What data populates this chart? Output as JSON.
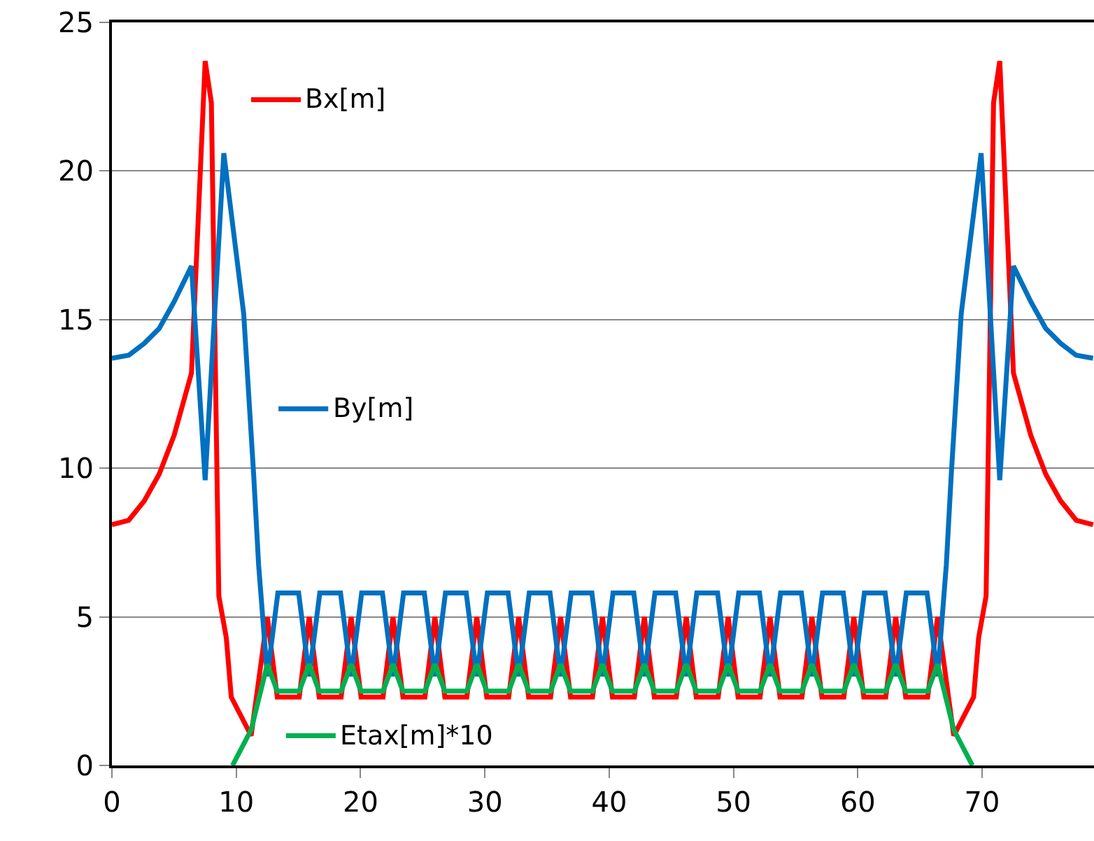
{
  "chart_data": {
    "type": "line",
    "xlim": [
      0,
      79
    ],
    "ylim": [
      0,
      25
    ],
    "xticks": [
      0,
      10,
      20,
      30,
      40,
      50,
      60,
      70
    ],
    "yticks": [
      0,
      5,
      10,
      15,
      20,
      25
    ],
    "grid": "y",
    "legend": "left",
    "marker": "none",
    "line_style": "solid",
    "series": [
      {
        "name": "Bx[m]",
        "color": "#ff0000",
        "x": [
          0,
          1.35,
          2.6,
          3.8,
          5.0,
          6.4,
          7.5,
          8.0,
          8.6,
          9.2,
          9.6,
          11.2,
          12.5,
          13.3,
          15.07,
          15.87,
          16.67,
          18.44,
          19.24,
          20.04,
          21.81,
          22.61,
          23.41,
          25.18,
          25.98,
          26.78,
          28.55,
          29.35,
          30.15,
          31.92,
          32.72,
          33.52,
          35.29,
          36.09,
          36.89,
          38.66,
          39.46,
          40.26,
          42.03,
          42.83,
          43.63,
          45.4,
          46.2,
          47,
          48.77,
          49.57,
          50.37,
          52.14,
          52.94,
          53.74,
          55.51,
          56.31,
          57.11,
          58.88,
          59.68,
          60.48,
          62.25,
          63.05,
          63.85,
          65.62,
          66.42,
          67.72,
          69.32,
          69.72,
          70.32,
          70.92,
          71.42,
          72.52,
          73.92,
          75.12,
          76.32,
          77.57,
          78.92
        ],
        "values": [
          8.1,
          8.25,
          8.9,
          9.8,
          11.1,
          13.2,
          23.7,
          22.3,
          5.7,
          4.3,
          2.3,
          1.0,
          5.0,
          2.3,
          2.3,
          5.0,
          2.3,
          2.3,
          5.0,
          2.3,
          2.3,
          5.0,
          2.3,
          2.3,
          5.0,
          2.3,
          2.3,
          5.0,
          2.3,
          2.3,
          5.0,
          2.3,
          2.3,
          5.0,
          2.3,
          2.3,
          5.0,
          2.3,
          2.3,
          5.0,
          2.3,
          2.3,
          5.0,
          2.3,
          2.3,
          5.0,
          2.3,
          2.3,
          5.0,
          2.3,
          2.3,
          5.0,
          2.3,
          2.3,
          5.0,
          2.3,
          2.3,
          5.0,
          2.3,
          2.3,
          5.0,
          1.0,
          2.3,
          4.3,
          5.7,
          22.3,
          23.7,
          13.2,
          11.1,
          9.8,
          8.9,
          8.25,
          8.1
        ]
      },
      {
        "name": "By[m]",
        "color": "#0070c0",
        "x": [
          0,
          1.35,
          2.6,
          3.8,
          5.0,
          6.4,
          7.5,
          9.0,
          10.6,
          11.4,
          11.8,
          12.5,
          13.35,
          15.02,
          15.87,
          16.72,
          18.39,
          19.24,
          20.09,
          21.76,
          22.61,
          23.46,
          25.13,
          25.98,
          26.83,
          28.5,
          29.35,
          30.2,
          31.87,
          32.72,
          33.57,
          35.24,
          36.09,
          36.94,
          38.61,
          39.46,
          40.31,
          41.98,
          42.83,
          43.68,
          45.35,
          46.2,
          47.05,
          48.72,
          49.57,
          50.42,
          52.09,
          52.94,
          53.79,
          55.46,
          56.31,
          57.16,
          58.83,
          59.68,
          60.53,
          62.2,
          63.05,
          63.9,
          65.57,
          66.42,
          67.12,
          67.52,
          68.32,
          69.92,
          71.42,
          72.52,
          73.92,
          75.12,
          76.32,
          77.57,
          78.92
        ],
        "values": [
          13.7,
          13.8,
          14.2,
          14.7,
          15.6,
          16.8,
          9.6,
          20.6,
          15.2,
          9.8,
          6.75,
          3.0,
          5.8,
          5.8,
          3.0,
          5.8,
          5.8,
          3.0,
          5.8,
          5.8,
          3.0,
          5.8,
          5.8,
          3.0,
          5.8,
          5.8,
          3.0,
          5.8,
          5.8,
          3.0,
          5.8,
          5.8,
          3.0,
          5.8,
          5.8,
          3.0,
          5.8,
          5.8,
          3.0,
          5.8,
          5.8,
          3.0,
          5.8,
          5.8,
          3.0,
          5.8,
          5.8,
          3.0,
          5.8,
          5.8,
          3.0,
          5.8,
          5.8,
          3.0,
          5.8,
          5.8,
          3.0,
          5.8,
          5.8,
          3.0,
          6.75,
          9.8,
          15.2,
          20.6,
          9.6,
          16.8,
          15.6,
          14.7,
          14.2,
          13.8,
          13.7
        ]
      },
      {
        "name": "Etax[m]*10",
        "color": "#00b050",
        "x": [
          9.7,
          11.2,
          12.5,
          13.3,
          15.07,
          15.87,
          16.67,
          18.44,
          19.24,
          20.04,
          21.81,
          22.61,
          23.41,
          25.18,
          25.98,
          26.78,
          28.55,
          29.35,
          30.15,
          31.92,
          32.72,
          33.52,
          35.29,
          36.09,
          36.89,
          38.66,
          39.46,
          40.26,
          42.03,
          42.83,
          43.63,
          45.4,
          46.2,
          47,
          48.77,
          49.57,
          50.37,
          52.14,
          52.94,
          53.74,
          55.51,
          56.31,
          57.11,
          58.88,
          59.68,
          60.48,
          62.25,
          63.05,
          63.85,
          65.62,
          66.42,
          67.72,
          69.22
        ],
        "values": [
          0,
          1.2,
          3.4,
          2.5,
          2.5,
          3.4,
          2.5,
          2.5,
          3.4,
          2.5,
          2.5,
          3.4,
          2.5,
          2.5,
          3.4,
          2.5,
          2.5,
          3.4,
          2.5,
          2.5,
          3.4,
          2.5,
          2.5,
          3.4,
          2.5,
          2.5,
          3.4,
          2.5,
          2.5,
          3.4,
          2.5,
          2.5,
          3.4,
          2.5,
          2.5,
          3.4,
          2.5,
          2.5,
          3.4,
          2.5,
          2.5,
          3.4,
          2.5,
          2.5,
          3.4,
          2.5,
          2.5,
          3.4,
          2.5,
          2.5,
          3.4,
          1.2,
          0
        ]
      }
    ]
  }
}
